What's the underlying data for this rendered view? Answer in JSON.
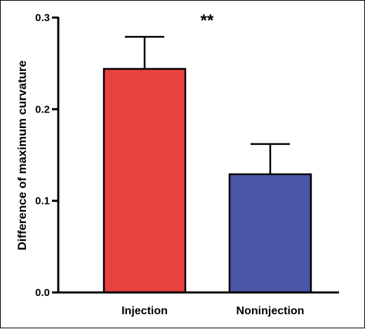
{
  "chart_data": {
    "type": "bar",
    "title": "",
    "xlabel": "",
    "ylabel": "Difference of maximum curvature",
    "categories": [
      "Injection",
      "Noninjection"
    ],
    "values": [
      0.244,
      0.129
    ],
    "error_upper": [
      0.279,
      0.162
    ],
    "bar_colors": [
      "#e8423f",
      "#4a56a6"
    ],
    "ylim": [
      0.0,
      0.3
    ],
    "yticks": [
      0.0,
      0.1,
      0.2,
      0.3
    ],
    "ytick_labels": [
      "0.0",
      "0.1",
      "0.2",
      "0.3"
    ],
    "grid": false,
    "legend": "none",
    "annotation": "**"
  }
}
